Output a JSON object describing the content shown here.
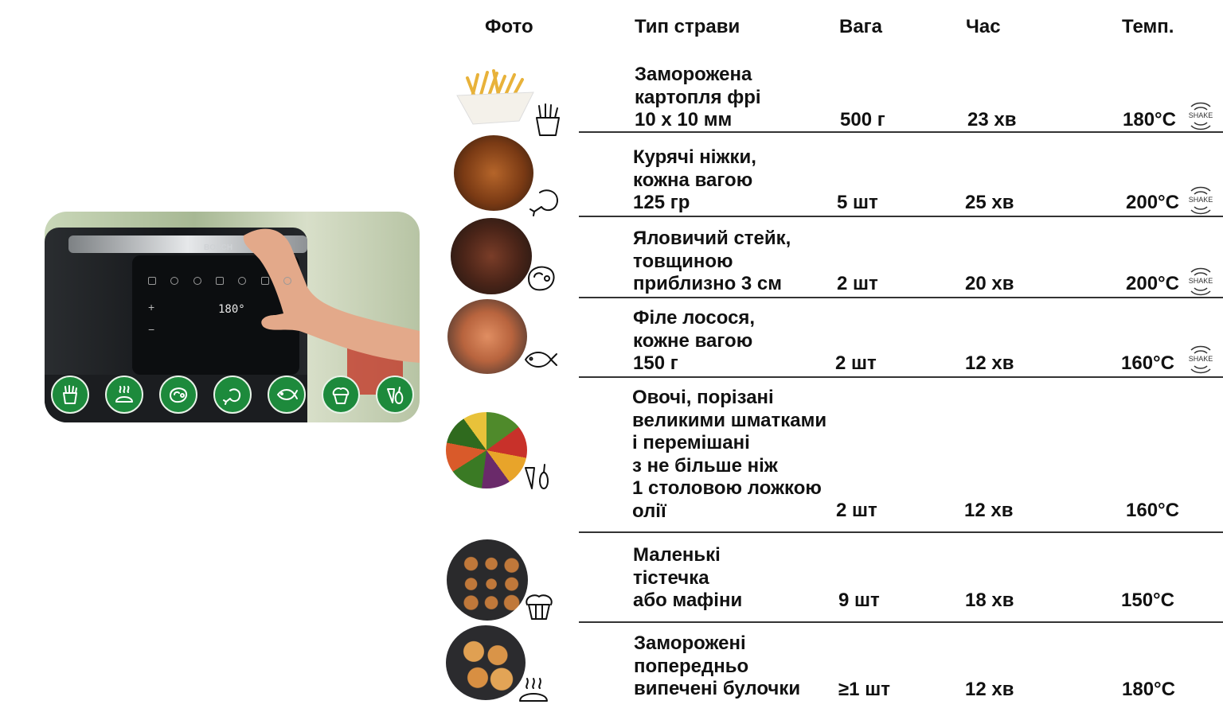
{
  "headers": {
    "photo": "Фото",
    "dish_type": "Тип страви",
    "weight": "Вага",
    "time": "Час",
    "temp": "Темп."
  },
  "device": {
    "brand": "BOSCH",
    "display": "180°",
    "plus": "+",
    "minus": "−",
    "buttons": [
      "fries-icon",
      "bread-icon",
      "steak-icon",
      "drumstick-icon",
      "fish-icon",
      "muffin-icon",
      "vegetables-icon"
    ]
  },
  "shake_label": "SHAKE",
  "rows": [
    {
      "dish": "Заморожена\nкартопля фрі\n10 х 10 мм",
      "weight": "500 г",
      "time": "23 хв",
      "temp": "180°C",
      "shake": true,
      "icon": "fries-icon",
      "accent": "#e8b23a"
    },
    {
      "dish": "Курячі ніжки,\nкожна вагою\n125 гр",
      "weight": "5 шт",
      "time": "25 хв",
      "temp": "200°C",
      "shake": true,
      "icon": "drumstick-icon",
      "accent": "#a8551e"
    },
    {
      "dish": "Яловичий стейк,\nтовщиною\nприблизно 3 см",
      "weight": "2 шт",
      "time": "20 хв",
      "temp": "200°C",
      "shake": true,
      "icon": "steak-icon",
      "accent": "#6b3a26"
    },
    {
      "dish": "Філе лосося,\nкожне вагою\n150 г",
      "weight": "2 шт",
      "time": "12 хв",
      "temp": "160°C",
      "shake": true,
      "icon": "fish-icon",
      "accent": "#d9865a"
    },
    {
      "dish": "Овочі, порізані\nвеликими шматками\nі перемішані\nз не більше ніж\n1 столовою ложкою\nолії",
      "weight": "2 шт",
      "time": "12 хв",
      "temp": "160°C",
      "shake": false,
      "icon": "vegetables-icon",
      "accent": "#4f8a2b"
    },
    {
      "dish": "Маленькі\nтістечка\nабо мафіни",
      "weight": "9 шт",
      "time": "18 хв",
      "temp": "150°C",
      "shake": false,
      "icon": "muffin-icon",
      "accent": "#b06a2c"
    },
    {
      "dish": "Заморожені\nпопередньо\nвипечені булочки",
      "weight": "≥1 шт",
      "time": "12 хв",
      "temp": "180°C",
      "shake": false,
      "icon": "bread-icon",
      "accent": "#c98a3d"
    }
  ]
}
